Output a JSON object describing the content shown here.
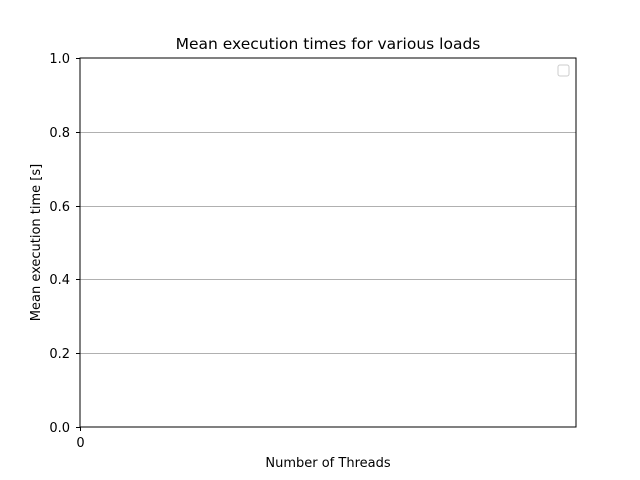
{
  "chart_data": {
    "type": "line",
    "title": "Mean execution times for various loads",
    "xlabel": "Number of Threads",
    "ylabel": "Mean execution time [s]",
    "ylim": [
      0,
      1
    ],
    "yticks": [
      0,
      0.2,
      0.4,
      0.6,
      0.8,
      1
    ],
    "ytick_labels": [
      "0.0",
      "0.2",
      "0.4",
      "0.6",
      "0.8",
      "1.0"
    ],
    "xticks": [
      0
    ],
    "xtick_labels": [
      "0"
    ],
    "grid": "y-major",
    "legend": {
      "position": "top-right",
      "entries": []
    },
    "series": []
  },
  "colors": {
    "grid": "#b0b0b0",
    "axes": "#000000",
    "legend_border": "#cccccc"
  }
}
